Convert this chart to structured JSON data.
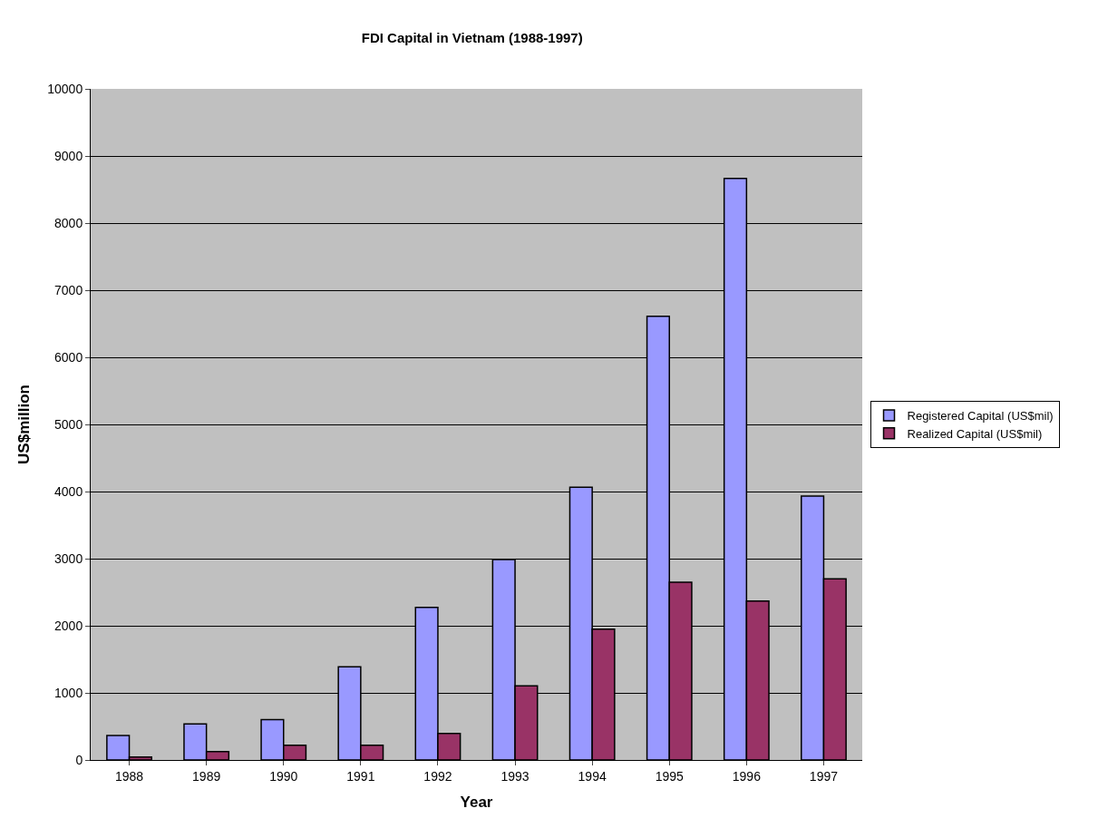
{
  "chart_data": {
    "type": "bar",
    "title": "FDI Capital in Vietnam (1988-1997)",
    "xlabel": "Year",
    "ylabel": "US$million",
    "categories": [
      "1988",
      "1989",
      "1990",
      "1991",
      "1992",
      "1993",
      "1994",
      "1995",
      "1996",
      "1997"
    ],
    "series": [
      {
        "name": "Registered Capital (US$mil)",
        "color": "#9999ff",
        "values": [
          365,
          536,
          600,
          1387,
          2275,
          2985,
          4063,
          6613,
          8667,
          3933
        ]
      },
      {
        "name": "Realized Capital (US$mil)",
        "color": "#993366",
        "values": [
          45,
          126,
          220,
          220,
          396,
          1106,
          1951,
          2647,
          2369,
          2701
        ]
      }
    ],
    "ylim": [
      0,
      10000
    ],
    "yticks": [
      0,
      1000,
      2000,
      3000,
      4000,
      5000,
      6000,
      7000,
      8000,
      9000,
      10000
    ],
    "grid": "y",
    "legend": "right"
  }
}
